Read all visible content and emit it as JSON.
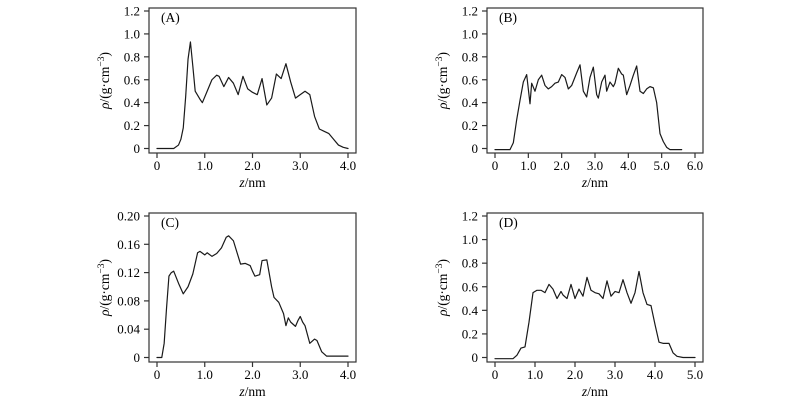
{
  "figure": {
    "background": "#ffffff",
    "curve_color": "#1a1a1a",
    "frame_color": "#333333",
    "text_color": "#000000"
  },
  "chart_data": [
    {
      "type": "line",
      "panel_label": "(A)",
      "xlabel_var": "z",
      "xlabel_rest": "/nm",
      "ylabel_var": "ρ",
      "ylabel_pre": "/(g·cm",
      "ylabel_sup": "−3",
      "ylabel_post": ")",
      "xlim": [
        0,
        4.0
      ],
      "ylim": [
        0,
        1.2
      ],
      "xticks": [
        0,
        1.0,
        2.0,
        3.0,
        4.0
      ],
      "xtick_labels": [
        "0",
        "1.0",
        "2.0",
        "3.0",
        "4.0"
      ],
      "yticks": [
        0,
        0.2,
        0.4,
        0.6,
        0.8,
        1.0,
        1.2
      ],
      "ytick_labels": [
        "0",
        "0.2",
        "0.4",
        "0.6",
        "0.8",
        "1.0",
        "1.2"
      ],
      "x": [
        0,
        0.35,
        0.45,
        0.5,
        0.55,
        0.6,
        0.65,
        0.7,
        0.75,
        0.8,
        0.9,
        0.95,
        1.05,
        1.15,
        1.25,
        1.3,
        1.4,
        1.5,
        1.6,
        1.7,
        1.8,
        1.9,
        2.0,
        2.1,
        2.2,
        2.3,
        2.4,
        2.5,
        2.6,
        2.7,
        2.8,
        2.9,
        3.0,
        3.1,
        3.2,
        3.3,
        3.4,
        3.5,
        3.6,
        3.7,
        3.8,
        3.9,
        4.0
      ],
      "y": [
        0,
        0,
        0.03,
        0.08,
        0.18,
        0.45,
        0.78,
        0.93,
        0.72,
        0.5,
        0.43,
        0.4,
        0.5,
        0.6,
        0.64,
        0.63,
        0.54,
        0.62,
        0.57,
        0.47,
        0.63,
        0.52,
        0.49,
        0.47,
        0.61,
        0.38,
        0.44,
        0.65,
        0.61,
        0.74,
        0.58,
        0.44,
        0.47,
        0.5,
        0.47,
        0.28,
        0.17,
        0.15,
        0.13,
        0.08,
        0.03,
        0.01,
        0
      ]
    },
    {
      "type": "line",
      "panel_label": "(B)",
      "xlabel_var": "z",
      "xlabel_rest": "/nm",
      "ylabel_var": "ρ",
      "ylabel_pre": "/(g·cm",
      "ylabel_sup": "−3",
      "ylabel_post": ")",
      "xlim": [
        0,
        6.0
      ],
      "ylim": [
        0,
        1.2
      ],
      "xticks": [
        0,
        1.0,
        2.0,
        3.0,
        4.0,
        5.0,
        6.0
      ],
      "xtick_labels": [
        "0",
        "1.0",
        "2.0",
        "3.0",
        "4.0",
        "5.0",
        "6.0"
      ],
      "yticks": [
        0,
        0.2,
        0.4,
        0.6,
        0.8,
        1.0,
        1.2
      ],
      "ytick_labels": [
        "0",
        "0.2",
        "0.4",
        "0.6",
        "0.8",
        "1.0",
        "1.2"
      ],
      "x": [
        0,
        0.45,
        0.55,
        0.65,
        0.75,
        0.85,
        0.95,
        1.05,
        1.1,
        1.2,
        1.3,
        1.4,
        1.5,
        1.6,
        1.7,
        1.8,
        1.9,
        2.0,
        2.1,
        2.2,
        2.3,
        2.45,
        2.55,
        2.65,
        2.75,
        2.85,
        2.95,
        3.05,
        3.1,
        3.2,
        3.3,
        3.35,
        3.45,
        3.55,
        3.6,
        3.7,
        3.8,
        3.85,
        3.95,
        4.05,
        4.15,
        4.25,
        4.35,
        4.45,
        4.55,
        4.65,
        4.75,
        4.85,
        4.95,
        5.05,
        5.15,
        5.25,
        5.6
      ],
      "y": [
        -0.01,
        -0.01,
        0.05,
        0.25,
        0.42,
        0.58,
        0.645,
        0.39,
        0.57,
        0.5,
        0.6,
        0.64,
        0.55,
        0.52,
        0.54,
        0.57,
        0.58,
        0.645,
        0.62,
        0.52,
        0.55,
        0.66,
        0.73,
        0.5,
        0.45,
        0.62,
        0.71,
        0.47,
        0.44,
        0.58,
        0.64,
        0.5,
        0.58,
        0.54,
        0.57,
        0.7,
        0.65,
        0.64,
        0.47,
        0.55,
        0.64,
        0.72,
        0.5,
        0.48,
        0.52,
        0.54,
        0.53,
        0.4,
        0.13,
        0.06,
        0.01,
        -0.01,
        -0.01
      ]
    },
    {
      "type": "line",
      "panel_label": "(C)",
      "xlabel_var": "z",
      "xlabel_rest": "/nm",
      "ylabel_var": "ρ",
      "ylabel_pre": "/(g·cm",
      "ylabel_sup": "−3",
      "ylabel_post": ")",
      "xlim": [
        0,
        4.0
      ],
      "ylim": [
        0,
        0.2
      ],
      "xticks": [
        0,
        1.0,
        2.0,
        3.0,
        4.0
      ],
      "xtick_labels": [
        "0",
        "1.0",
        "2.0",
        "3.0",
        "4.0"
      ],
      "yticks": [
        0,
        0.04,
        0.08,
        0.12,
        0.16,
        0.2
      ],
      "ytick_labels": [
        "0",
        "0.04",
        "0.08",
        "0.12",
        "0.16",
        "0.20"
      ],
      "x": [
        0,
        0.1,
        0.15,
        0.2,
        0.25,
        0.3,
        0.35,
        0.45,
        0.55,
        0.65,
        0.75,
        0.85,
        0.9,
        1.0,
        1.05,
        1.15,
        1.25,
        1.35,
        1.45,
        1.5,
        1.6,
        1.7,
        1.75,
        1.85,
        1.95,
        2.0,
        2.05,
        2.15,
        2.2,
        2.3,
        2.4,
        2.45,
        2.55,
        2.65,
        2.7,
        2.75,
        2.8,
        2.9,
        2.95,
        3.0,
        3.05,
        3.1,
        3.2,
        3.3,
        3.35,
        3.45,
        3.55,
        4.0
      ],
      "y": [
        0,
        0,
        0.02,
        0.07,
        0.115,
        0.12,
        0.122,
        0.105,
        0.09,
        0.1,
        0.118,
        0.148,
        0.15,
        0.145,
        0.148,
        0.143,
        0.147,
        0.155,
        0.17,
        0.172,
        0.165,
        0.143,
        0.132,
        0.133,
        0.13,
        0.122,
        0.115,
        0.117,
        0.137,
        0.138,
        0.1,
        0.085,
        0.078,
        0.062,
        0.045,
        0.056,
        0.05,
        0.044,
        0.052,
        0.058,
        0.05,
        0.045,
        0.02,
        0.026,
        0.024,
        0.008,
        0.002,
        0.002
      ]
    },
    {
      "type": "line",
      "panel_label": "(D)",
      "xlabel_var": "z",
      "xlabel_rest": "/nm",
      "ylabel_var": "ρ",
      "ylabel_pre": "/(g·cm",
      "ylabel_sup": "−3",
      "ylabel_post": ")",
      "xlim": [
        0,
        5.0
      ],
      "ylim": [
        0,
        1.2
      ],
      "xticks": [
        0,
        1.0,
        2.0,
        3.0,
        4.0,
        5.0
      ],
      "xtick_labels": [
        "0",
        "1.0",
        "2.0",
        "3.0",
        "4.0",
        "5.0"
      ],
      "yticks": [
        0,
        0.2,
        0.4,
        0.6,
        0.8,
        1.0,
        1.2
      ],
      "ytick_labels": [
        "0",
        "0.2",
        "0.4",
        "0.6",
        "0.8",
        "1.0",
        "1.2"
      ],
      "x": [
        0,
        0.45,
        0.55,
        0.6,
        0.65,
        0.75,
        0.85,
        0.95,
        1.05,
        1.15,
        1.25,
        1.35,
        1.45,
        1.55,
        1.65,
        1.7,
        1.8,
        1.9,
        2.0,
        2.1,
        2.2,
        2.3,
        2.4,
        2.5,
        2.6,
        2.7,
        2.8,
        2.9,
        3.0,
        3.1,
        3.2,
        3.3,
        3.4,
        3.5,
        3.6,
        3.7,
        3.8,
        3.9,
        4.0,
        4.1,
        4.2,
        4.35,
        4.45,
        4.55,
        4.7,
        5.0
      ],
      "y": [
        -0.01,
        -0.01,
        0.02,
        0.05,
        0.08,
        0.09,
        0.3,
        0.55,
        0.57,
        0.57,
        0.55,
        0.62,
        0.58,
        0.5,
        0.56,
        0.53,
        0.5,
        0.62,
        0.5,
        0.58,
        0.52,
        0.68,
        0.57,
        0.55,
        0.54,
        0.5,
        0.65,
        0.52,
        0.56,
        0.55,
        0.66,
        0.55,
        0.46,
        0.55,
        0.73,
        0.55,
        0.45,
        0.44,
        0.28,
        0.13,
        0.12,
        0.12,
        0.04,
        0.01,
        0,
        0
      ]
    }
  ]
}
